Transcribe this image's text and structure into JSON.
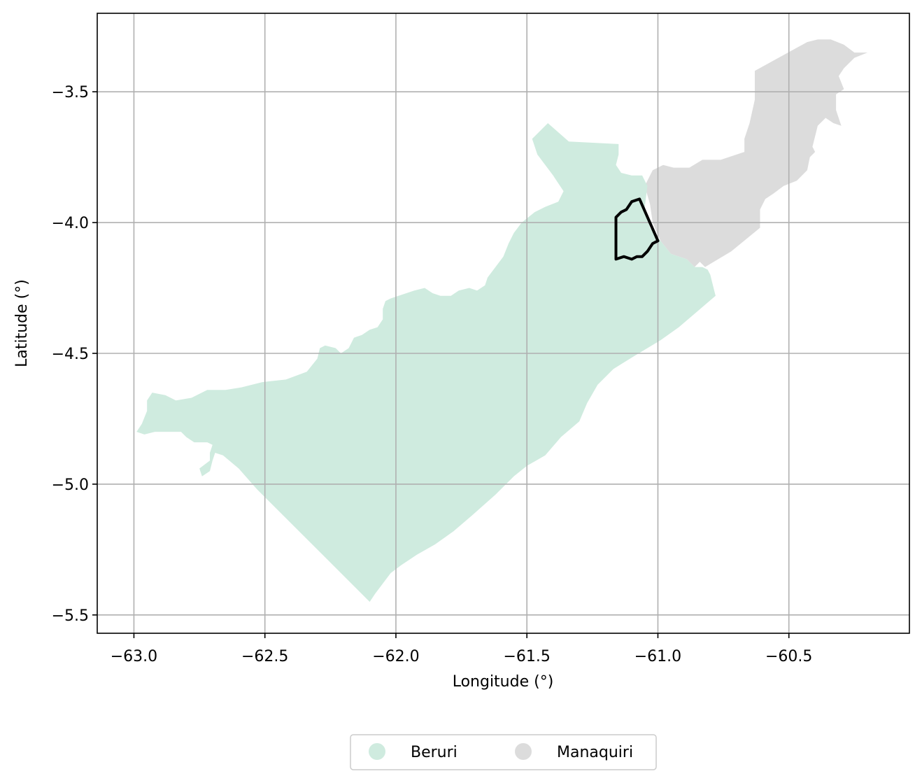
{
  "colors": {
    "beruri_fill": "#cfebdf",
    "manaquiri_fill": "#dcdcdc",
    "highlight_stroke": "#000000",
    "grid": "#b0b0b0",
    "axes": "#000000",
    "legend_border": "#cccccc"
  },
  "chart_data": {
    "type": "map",
    "xlabel": "Longitude (°)",
    "ylabel": "Latitude (°)",
    "xlim": [
      -63.14,
      -60.04
    ],
    "ylim": [
      -5.57,
      -3.2
    ],
    "grid": true,
    "x_ticks": [
      -63.0,
      -62.5,
      -62.0,
      -61.5,
      -61.0,
      -60.5
    ],
    "y_ticks": [
      -5.5,
      -5.0,
      -4.5,
      -4.0,
      -3.5
    ],
    "x_tick_labels": [
      "−63.0",
      "−62.5",
      "−62.0",
      "−61.5",
      "−61.0",
      "−60.5"
    ],
    "y_tick_labels": [
      "−5.5",
      "−5.0",
      "−4.5",
      "−4.0",
      "−3.5"
    ],
    "legend_position": "bottom-center",
    "legend": [
      {
        "name": "Beruri",
        "color": "#cfebdf"
      },
      {
        "name": "Manaquiri",
        "color": "#dcdcdc"
      }
    ],
    "regions": [
      {
        "name": "Manaquiri",
        "color": "#dcdcdc",
        "coords": [
          [
            -60.63,
            -3.42
          ],
          [
            -60.43,
            -3.31
          ],
          [
            -60.39,
            -3.3
          ],
          [
            -60.34,
            -3.3
          ],
          [
            -60.29,
            -3.32
          ],
          [
            -60.25,
            -3.35
          ],
          [
            -60.2,
            -3.35
          ],
          [
            -60.25,
            -3.37
          ],
          [
            -60.29,
            -3.41
          ],
          [
            -60.31,
            -3.44
          ],
          [
            -60.29,
            -3.49
          ],
          [
            -60.32,
            -3.51
          ],
          [
            -60.32,
            -3.57
          ],
          [
            -60.3,
            -3.63
          ],
          [
            -60.33,
            -3.62
          ],
          [
            -60.36,
            -3.6
          ],
          [
            -60.39,
            -3.63
          ],
          [
            -60.4,
            -3.67
          ],
          [
            -60.41,
            -3.71
          ],
          [
            -60.4,
            -3.73
          ],
          [
            -60.42,
            -3.75
          ],
          [
            -60.43,
            -3.8
          ],
          [
            -60.47,
            -3.84
          ],
          [
            -60.52,
            -3.86
          ],
          [
            -60.56,
            -3.89
          ],
          [
            -60.59,
            -3.91
          ],
          [
            -60.61,
            -3.95
          ],
          [
            -60.61,
            -4.02
          ],
          [
            -60.72,
            -4.11
          ],
          [
            -60.82,
            -4.17
          ],
          [
            -60.84,
            -4.15
          ],
          [
            -60.86,
            -4.17
          ],
          [
            -60.89,
            -4.14
          ],
          [
            -60.95,
            -4.12
          ],
          [
            -60.99,
            -4.07
          ],
          [
            -61.02,
            -4.0
          ],
          [
            -61.03,
            -3.93
          ],
          [
            -61.05,
            -3.86
          ],
          [
            -61.02,
            -3.8
          ],
          [
            -60.98,
            -3.78
          ],
          [
            -60.94,
            -3.79
          ],
          [
            -60.88,
            -3.79
          ],
          [
            -60.83,
            -3.76
          ],
          [
            -60.76,
            -3.76
          ],
          [
            -60.7,
            -3.74
          ],
          [
            -60.67,
            -3.73
          ],
          [
            -60.67,
            -3.68
          ],
          [
            -60.65,
            -3.62
          ],
          [
            -60.63,
            -3.53
          ],
          [
            -60.63,
            -3.46
          ]
        ]
      },
      {
        "name": "Beruri",
        "color": "#cfebdf",
        "coords": [
          [
            -61.48,
            -3.68
          ],
          [
            -61.42,
            -3.62
          ],
          [
            -61.34,
            -3.69
          ],
          [
            -61.15,
            -3.7
          ],
          [
            -61.15,
            -3.74
          ],
          [
            -61.16,
            -3.78
          ],
          [
            -61.14,
            -3.81
          ],
          [
            -61.1,
            -3.82
          ],
          [
            -61.06,
            -3.82
          ],
          [
            -61.04,
            -3.86
          ],
          [
            -61.05,
            -3.94
          ],
          [
            -61.03,
            -4.02
          ],
          [
            -60.99,
            -4.07
          ],
          [
            -60.95,
            -4.12
          ],
          [
            -60.89,
            -4.14
          ],
          [
            -60.86,
            -4.17
          ],
          [
            -60.83,
            -4.17
          ],
          [
            -60.81,
            -4.18
          ],
          [
            -60.8,
            -4.2
          ],
          [
            -60.79,
            -4.24
          ],
          [
            -60.78,
            -4.28
          ],
          [
            -60.85,
            -4.34
          ],
          [
            -60.92,
            -4.4
          ],
          [
            -60.99,
            -4.45
          ],
          [
            -61.09,
            -4.51
          ],
          [
            -61.17,
            -4.56
          ],
          [
            -61.23,
            -4.62
          ],
          [
            -61.27,
            -4.69
          ],
          [
            -61.3,
            -4.76
          ],
          [
            -61.37,
            -4.82
          ],
          [
            -61.43,
            -4.89
          ],
          [
            -61.5,
            -4.93
          ],
          [
            -61.55,
            -4.97
          ],
          [
            -61.62,
            -5.04
          ],
          [
            -61.71,
            -5.12
          ],
          [
            -61.78,
            -5.18
          ],
          [
            -61.85,
            -5.23
          ],
          [
            -61.92,
            -5.27
          ],
          [
            -61.98,
            -5.31
          ],
          [
            -62.02,
            -5.34
          ],
          [
            -62.05,
            -5.38
          ],
          [
            -62.08,
            -5.42
          ],
          [
            -62.1,
            -5.45
          ],
          [
            -62.28,
            -5.27
          ],
          [
            -62.42,
            -5.13
          ],
          [
            -62.53,
            -5.02
          ],
          [
            -62.6,
            -4.94
          ],
          [
            -62.66,
            -4.89
          ],
          [
            -62.69,
            -4.88
          ],
          [
            -62.7,
            -4.91
          ],
          [
            -62.71,
            -4.95
          ],
          [
            -62.74,
            -4.97
          ],
          [
            -62.75,
            -4.94
          ],
          [
            -62.71,
            -4.91
          ],
          [
            -62.71,
            -4.88
          ],
          [
            -62.7,
            -4.85
          ],
          [
            -62.72,
            -4.84
          ],
          [
            -62.77,
            -4.84
          ],
          [
            -62.8,
            -4.82
          ],
          [
            -62.82,
            -4.8
          ],
          [
            -62.87,
            -4.8
          ],
          [
            -62.92,
            -4.8
          ],
          [
            -62.96,
            -4.81
          ],
          [
            -62.99,
            -4.8
          ],
          [
            -62.97,
            -4.77
          ],
          [
            -62.95,
            -4.72
          ],
          [
            -62.95,
            -4.68
          ],
          [
            -62.93,
            -4.65
          ],
          [
            -62.88,
            -4.66
          ],
          [
            -62.84,
            -4.68
          ],
          [
            -62.78,
            -4.67
          ],
          [
            -62.72,
            -4.64
          ],
          [
            -62.65,
            -4.64
          ],
          [
            -62.59,
            -4.63
          ],
          [
            -62.51,
            -4.61
          ],
          [
            -62.42,
            -4.6
          ],
          [
            -62.34,
            -4.57
          ],
          [
            -62.3,
            -4.52
          ],
          [
            -62.29,
            -4.48
          ],
          [
            -62.27,
            -4.47
          ],
          [
            -62.23,
            -4.48
          ],
          [
            -62.21,
            -4.5
          ],
          [
            -62.18,
            -4.48
          ],
          [
            -62.16,
            -4.44
          ],
          [
            -62.13,
            -4.43
          ],
          [
            -62.1,
            -4.41
          ],
          [
            -62.07,
            -4.4
          ],
          [
            -62.05,
            -4.37
          ],
          [
            -62.05,
            -4.33
          ],
          [
            -62.04,
            -4.3
          ],
          [
            -62.02,
            -4.29
          ],
          [
            -61.99,
            -4.28
          ],
          [
            -61.96,
            -4.27
          ],
          [
            -61.93,
            -4.26
          ],
          [
            -61.89,
            -4.25
          ],
          [
            -61.86,
            -4.27
          ],
          [
            -61.83,
            -4.28
          ],
          [
            -61.79,
            -4.28
          ],
          [
            -61.76,
            -4.26
          ],
          [
            -61.72,
            -4.25
          ],
          [
            -61.69,
            -4.26
          ],
          [
            -61.66,
            -4.24
          ],
          [
            -61.65,
            -4.21
          ],
          [
            -61.62,
            -4.17
          ],
          [
            -61.59,
            -4.13
          ],
          [
            -61.57,
            -4.08
          ],
          [
            -61.55,
            -4.04
          ],
          [
            -61.52,
            -4.0
          ],
          [
            -61.47,
            -3.96
          ],
          [
            -61.43,
            -3.94
          ],
          [
            -61.38,
            -3.92
          ],
          [
            -61.36,
            -3.88
          ],
          [
            -61.38,
            -3.85
          ],
          [
            -61.4,
            -3.82
          ],
          [
            -61.43,
            -3.78
          ],
          [
            -61.46,
            -3.74
          ]
        ]
      }
    ],
    "highlight_outline": [
      [
        -61.16,
        -4.14
      ],
      [
        -61.13,
        -4.13
      ],
      [
        -61.1,
        -4.14
      ],
      [
        -61.08,
        -4.13
      ],
      [
        -61.06,
        -4.13
      ],
      [
        -61.04,
        -4.11
      ],
      [
        -61.02,
        -4.08
      ],
      [
        -61.0,
        -4.07
      ],
      [
        -61.07,
        -3.91
      ],
      [
        -61.1,
        -3.92
      ],
      [
        -61.12,
        -3.95
      ],
      [
        -61.14,
        -3.96
      ],
      [
        -61.16,
        -3.98
      ],
      [
        -61.16,
        -4.06
      ]
    ]
  }
}
